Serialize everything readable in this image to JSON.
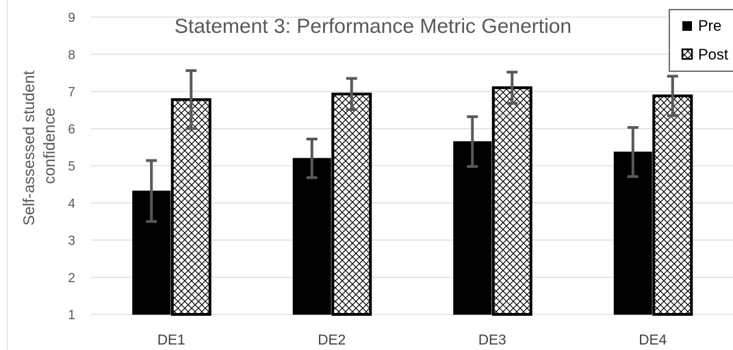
{
  "chart_data": {
    "type": "bar",
    "title": "Statement 3: Performance Metric Genertion",
    "xlabel": "",
    "ylabel_lines": [
      "Self-assessed student",
      "confidence"
    ],
    "categories": [
      "DE1",
      "DE2",
      "DE3",
      "DE4"
    ],
    "ylim": [
      1,
      9
    ],
    "yticks": [
      1,
      2,
      3,
      4,
      5,
      6,
      7,
      8,
      9
    ],
    "grid": true,
    "legend_position": "top-right",
    "series": [
      {
        "name": "Pre",
        "values": [
          4.32,
          5.2,
          5.65,
          5.37
        ],
        "error": [
          0.82,
          0.52,
          0.67,
          0.66
        ],
        "fill": "solid",
        "color": "#000000"
      },
      {
        "name": "Post",
        "values": [
          6.78,
          6.93,
          7.1,
          6.88
        ],
        "error": [
          0.78,
          0.42,
          0.42,
          0.53
        ],
        "fill": "crosshatch",
        "color": "#000000"
      }
    ],
    "colors": {
      "axis_text": "#595959",
      "grid": "#d9d9d9",
      "error_bar": "#595959",
      "bar_outline": "#000000"
    }
  }
}
